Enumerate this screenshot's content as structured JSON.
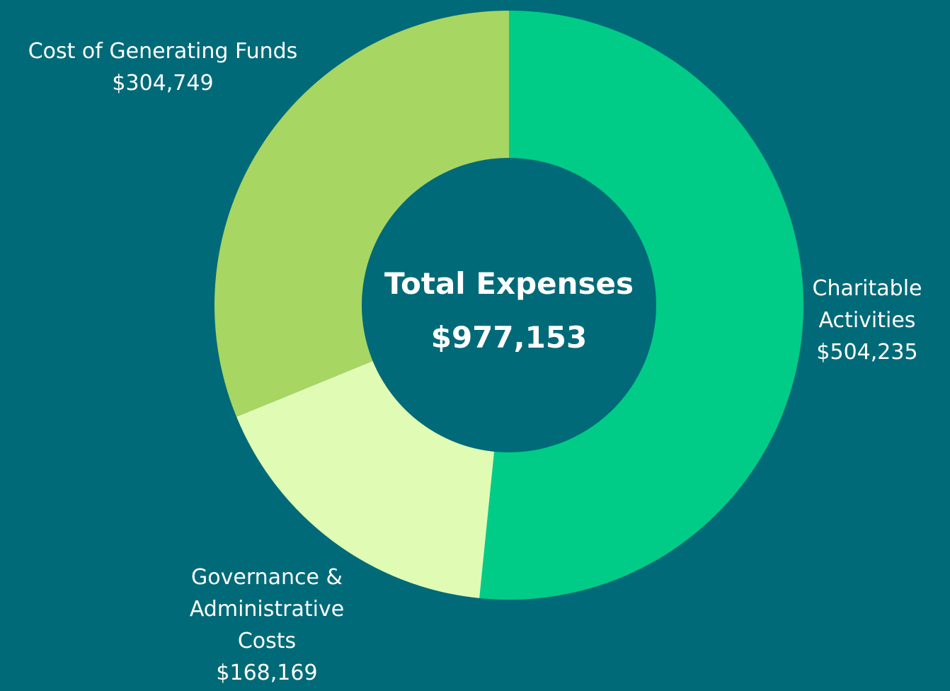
{
  "chart_data": {
    "type": "donut",
    "categories": [
      "Charitable Activities",
      "Governance & Administrative Costs",
      "Cost of Generating Funds"
    ],
    "values": [
      504235,
      168169,
      304749
    ],
    "value_labels": [
      "$504,235",
      "$168,169",
      "$304,749"
    ],
    "colors": [
      "#00cc88",
      "#e0fcb4",
      "#a8d662"
    ],
    "center_text": [
      "Total Expenses",
      "$977,153"
    ]
  }
}
